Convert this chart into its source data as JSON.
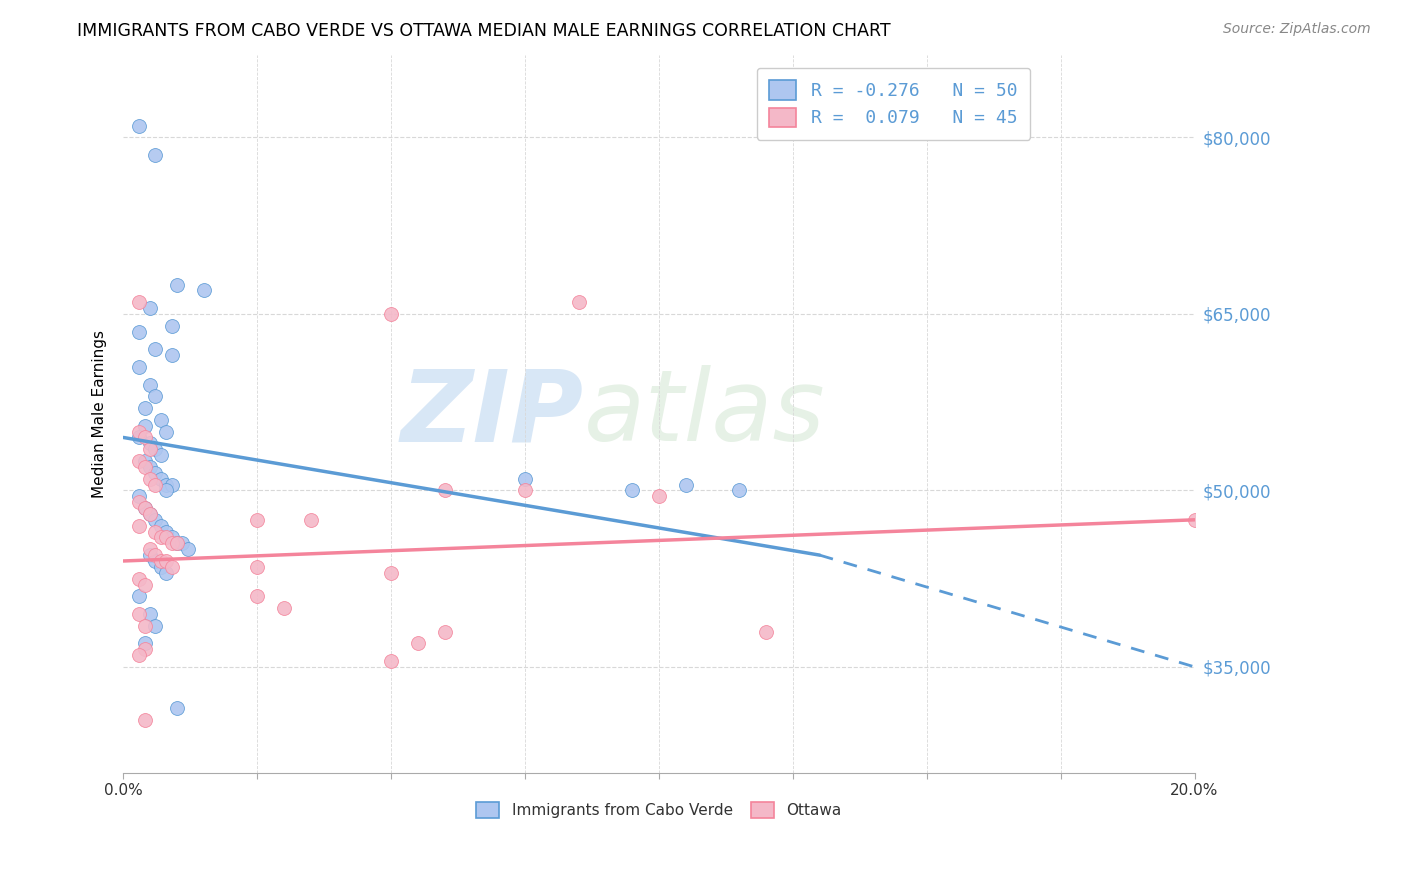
{
  "title": "IMMIGRANTS FROM CABO VERDE VS OTTAWA MEDIAN MALE EARNINGS CORRELATION CHART",
  "source": "Source: ZipAtlas.com",
  "ylabel": "Median Male Earnings",
  "ytick_labels": [
    "$35,000",
    "$50,000",
    "$65,000",
    "$80,000"
  ],
  "ytick_values": [
    35000,
    50000,
    65000,
    80000
  ],
  "ylim": [
    26000,
    87000
  ],
  "xlim": [
    0.0,
    0.2
  ],
  "legend_entries": [
    {
      "label": "R = -0.276   N = 50"
    },
    {
      "label": "R =  0.079   N = 45"
    }
  ],
  "legend_bottom": [
    "Immigrants from Cabo Verde",
    "Ottawa"
  ],
  "blue_scatter": [
    [
      0.003,
      81000
    ],
    [
      0.006,
      78500
    ],
    [
      0.01,
      67500
    ],
    [
      0.015,
      67000
    ],
    [
      0.005,
      65500
    ],
    [
      0.009,
      64000
    ],
    [
      0.003,
      63500
    ],
    [
      0.006,
      62000
    ],
    [
      0.009,
      61500
    ],
    [
      0.003,
      60500
    ],
    [
      0.005,
      59000
    ],
    [
      0.006,
      58000
    ],
    [
      0.004,
      57000
    ],
    [
      0.007,
      56000
    ],
    [
      0.004,
      55500
    ],
    [
      0.008,
      55000
    ],
    [
      0.003,
      54500
    ],
    [
      0.005,
      54000
    ],
    [
      0.006,
      53500
    ],
    [
      0.007,
      53000
    ],
    [
      0.004,
      52500
    ],
    [
      0.005,
      52000
    ],
    [
      0.006,
      51500
    ],
    [
      0.007,
      51000
    ],
    [
      0.008,
      50500
    ],
    [
      0.009,
      50500
    ],
    [
      0.008,
      50000
    ],
    [
      0.075,
      51000
    ],
    [
      0.095,
      50000
    ],
    [
      0.003,
      49500
    ],
    [
      0.004,
      48500
    ],
    [
      0.005,
      48000
    ],
    [
      0.006,
      47500
    ],
    [
      0.007,
      47000
    ],
    [
      0.008,
      46500
    ],
    [
      0.009,
      46000
    ],
    [
      0.01,
      45500
    ],
    [
      0.011,
      45500
    ],
    [
      0.012,
      45000
    ],
    [
      0.005,
      44500
    ],
    [
      0.006,
      44000
    ],
    [
      0.007,
      43500
    ],
    [
      0.008,
      43000
    ],
    [
      0.105,
      50500
    ],
    [
      0.115,
      50000
    ],
    [
      0.003,
      41000
    ],
    [
      0.005,
      39500
    ],
    [
      0.006,
      38500
    ],
    [
      0.004,
      37000
    ],
    [
      0.01,
      31500
    ]
  ],
  "pink_scatter": [
    [
      0.003,
      66000
    ],
    [
      0.085,
      66000
    ],
    [
      0.05,
      65000
    ],
    [
      0.003,
      55000
    ],
    [
      0.004,
      54500
    ],
    [
      0.005,
      53500
    ],
    [
      0.003,
      52500
    ],
    [
      0.004,
      52000
    ],
    [
      0.005,
      51000
    ],
    [
      0.006,
      50500
    ],
    [
      0.06,
      50000
    ],
    [
      0.1,
      49500
    ],
    [
      0.003,
      49000
    ],
    [
      0.004,
      48500
    ],
    [
      0.005,
      48000
    ],
    [
      0.025,
      47500
    ],
    [
      0.035,
      47500
    ],
    [
      0.003,
      47000
    ],
    [
      0.006,
      46500
    ],
    [
      0.007,
      46000
    ],
    [
      0.008,
      46000
    ],
    [
      0.009,
      45500
    ],
    [
      0.01,
      45500
    ],
    [
      0.005,
      45000
    ],
    [
      0.006,
      44500
    ],
    [
      0.007,
      44000
    ],
    [
      0.008,
      44000
    ],
    [
      0.009,
      43500
    ],
    [
      0.025,
      43500
    ],
    [
      0.05,
      43000
    ],
    [
      0.003,
      42500
    ],
    [
      0.004,
      42000
    ],
    [
      0.025,
      41000
    ],
    [
      0.03,
      40000
    ],
    [
      0.003,
      39500
    ],
    [
      0.004,
      38500
    ],
    [
      0.06,
      38000
    ],
    [
      0.055,
      37000
    ],
    [
      0.004,
      36500
    ],
    [
      0.003,
      36000
    ],
    [
      0.05,
      35500
    ],
    [
      0.004,
      30500
    ],
    [
      0.2,
      47500
    ],
    [
      0.075,
      50000
    ],
    [
      0.12,
      38000
    ]
  ],
  "blue_line": {
    "x0": 0.0,
    "y0": 54500,
    "x1": 0.13,
    "y1": 44500
  },
  "blue_dash_line": {
    "x0": 0.13,
    "y0": 44500,
    "x1": 0.2,
    "y1": 35000
  },
  "pink_line": {
    "x0": 0.0,
    "y0": 44000,
    "x1": 0.2,
    "y1": 47500
  },
  "blue_color": "#5b9bd5",
  "pink_color": "#f4849b",
  "blue_scatter_color": "#aec6f0",
  "pink_scatter_color": "#f4b8c8",
  "watermark_zip": "ZIP",
  "watermark_atlas": "atlas",
  "background_color": "#ffffff",
  "grid_color": "#d8d8d8"
}
